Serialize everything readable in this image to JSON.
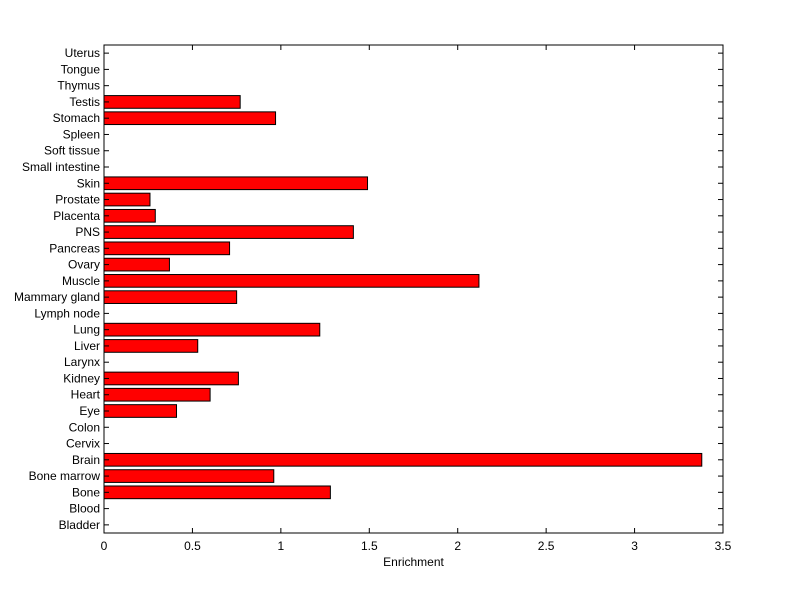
{
  "chart_data": {
    "type": "bar",
    "orientation": "horizontal",
    "title": "",
    "xlabel": "Enrichment",
    "ylabel": "",
    "xlim": [
      0,
      3.5
    ],
    "xticks": [
      0,
      0.5,
      1,
      1.5,
      2,
      2.5,
      3,
      3.5
    ],
    "xtick_labels": [
      "0",
      "0.5",
      "1",
      "1.5",
      "2",
      "2.5",
      "3",
      "3.5"
    ],
    "bar_color": "#ff0000",
    "bar_edge_color": "#000000",
    "grid": false,
    "categories": [
      "Bladder",
      "Blood",
      "Bone",
      "Bone marrow",
      "Brain",
      "Cervix",
      "Colon",
      "Eye",
      "Heart",
      "Kidney",
      "Larynx",
      "Liver",
      "Lung",
      "Lymph node",
      "Mammary gland",
      "Muscle",
      "Ovary",
      "Pancreas",
      "PNS",
      "Placenta",
      "Prostate",
      "Skin",
      "Small intestine",
      "Soft tissue",
      "Spleen",
      "Stomach",
      "Testis",
      "Thymus",
      "Tongue",
      "Uterus"
    ],
    "values": [
      0,
      0,
      1.28,
      0.96,
      3.38,
      0,
      0,
      0.41,
      0.6,
      0.76,
      0,
      0.53,
      1.22,
      0,
      0.75,
      2.12,
      0.37,
      0.71,
      1.41,
      0.29,
      0.26,
      1.49,
      0,
      0,
      0,
      0.97,
      0.77,
      0,
      0,
      0
    ]
  }
}
